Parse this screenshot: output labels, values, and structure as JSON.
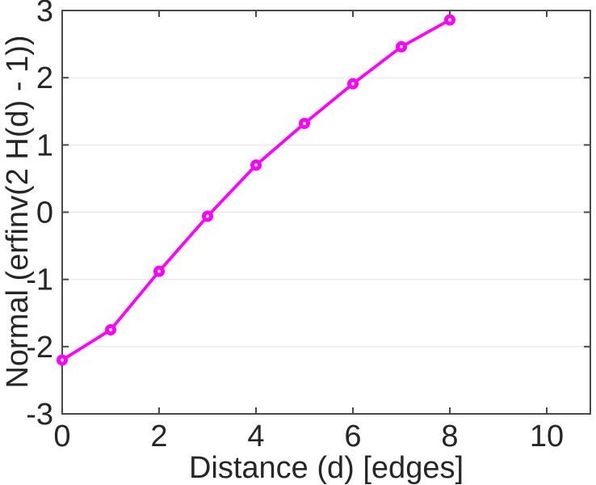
{
  "figure": {
    "background": "#ffffff"
  },
  "chart_data": {
    "type": "line",
    "title": "",
    "xlabel": "Distance (d) [edges]",
    "ylabel": "Normal (erfinv(2 H(d) - 1))",
    "x": [
      0,
      1,
      2,
      3,
      4,
      5,
      6,
      7,
      8
    ],
    "y": [
      -2.2,
      -1.75,
      -0.88,
      -0.06,
      0.7,
      1.32,
      1.91,
      2.46,
      2.86
    ],
    "xlim": [
      0,
      10.9
    ],
    "ylim": [
      -3,
      3
    ],
    "xticks": [
      0,
      2,
      4,
      6,
      8,
      10
    ],
    "yticks": [
      -3,
      -2,
      -1,
      0,
      1,
      2,
      3
    ],
    "xtick_labels": [
      "0",
      "2",
      "4",
      "6",
      "8",
      "10"
    ],
    "ytick_labels": [
      "-3",
      "-2",
      "-1",
      "0",
      "1",
      "2",
      "3"
    ],
    "grid": "horizontal-only",
    "legend": "none",
    "line_color": "#ff00ff",
    "marker": "open-circle",
    "marker_face_color": "#ffffff",
    "axis_color": "#4a4a4a",
    "grid_color": "#e6e6e6",
    "tick_label_color": "#262626",
    "label_color": "#262626"
  }
}
